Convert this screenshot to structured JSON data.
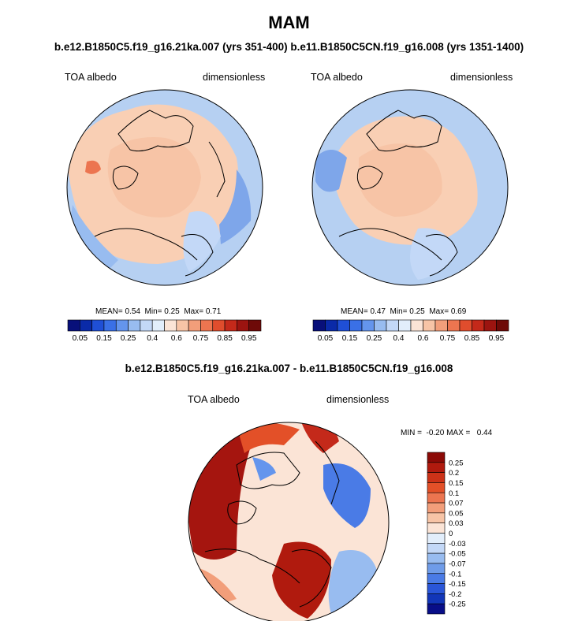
{
  "header": {
    "title": "MAM",
    "subtitle": "b.e12.B1850C5.f19_g16.21ka.007 (yrs 351-400) b.e11.B1850C5CN.f19_g16.008 (yrs 1351-1400)",
    "diff_title": "b.e12.B1850C5.f19_g16.21ka.007 - b.e11.B1850C5CN.f19_g16.008"
  },
  "panels": [
    {
      "left_label": "TOA albedo",
      "right_label": "dimensionless",
      "stats": {
        "mean_label": "MEAN=",
        "mean": "0.54",
        "min_label": "Min=",
        "min": "0.25",
        "max_label": "Max=",
        "max": "0.71"
      }
    },
    {
      "left_label": "TOA albedo",
      "right_label": "dimensionless",
      "stats": {
        "mean_label": "MEAN=",
        "mean": "0.47",
        "min_label": "Min=",
        "min": "0.25",
        "max_label": "Max=",
        "max": "0.69"
      }
    }
  ],
  "diff_panel": {
    "left_label": "TOA albedo",
    "right_label": "dimensionless",
    "minmax": "MIN =  -0.20 MAX =   0.44"
  },
  "colorbar_h": {
    "colors": [
      "#08107a",
      "#0a2aa8",
      "#1f4fd6",
      "#3a70e6",
      "#6495ed",
      "#98bcf0",
      "#c3d8f7",
      "#e2eefb",
      "#fbe4d6",
      "#f7c4a6",
      "#f29e7a",
      "#ec7550",
      "#e04d2d",
      "#c4291a",
      "#9c1410",
      "#6e0a08"
    ],
    "ticks": [
      "0.05",
      "0.15",
      "0.25",
      "0.4",
      "0.6",
      "0.75",
      "0.85",
      "0.95"
    ]
  },
  "colorbar_v": {
    "colors": [
      "#8b0a06",
      "#b01a0e",
      "#cc3218",
      "#e35028",
      "#ec7550",
      "#f29e7a",
      "#f7c4a6",
      "#fbe4d6",
      "#e2eefb",
      "#c3d8f7",
      "#98bcf0",
      "#6f9ce9",
      "#4a7be6",
      "#2a56d8",
      "#1236b8",
      "#080e88"
    ],
    "ticks": [
      "0.25",
      "0.2",
      "0.15",
      "0.1",
      "0.07",
      "0.05",
      "0.03",
      "0",
      "-0.03",
      "-0.05",
      "-0.07",
      "-0.1",
      "-0.15",
      "-0.2",
      "-0.25"
    ]
  },
  "colors": {
    "ocean_blue": "#b6d0f2",
    "land_peach": "#f9cfb4",
    "deep_red": "#a5150f",
    "mid_blue": "#7ea6ea"
  }
}
